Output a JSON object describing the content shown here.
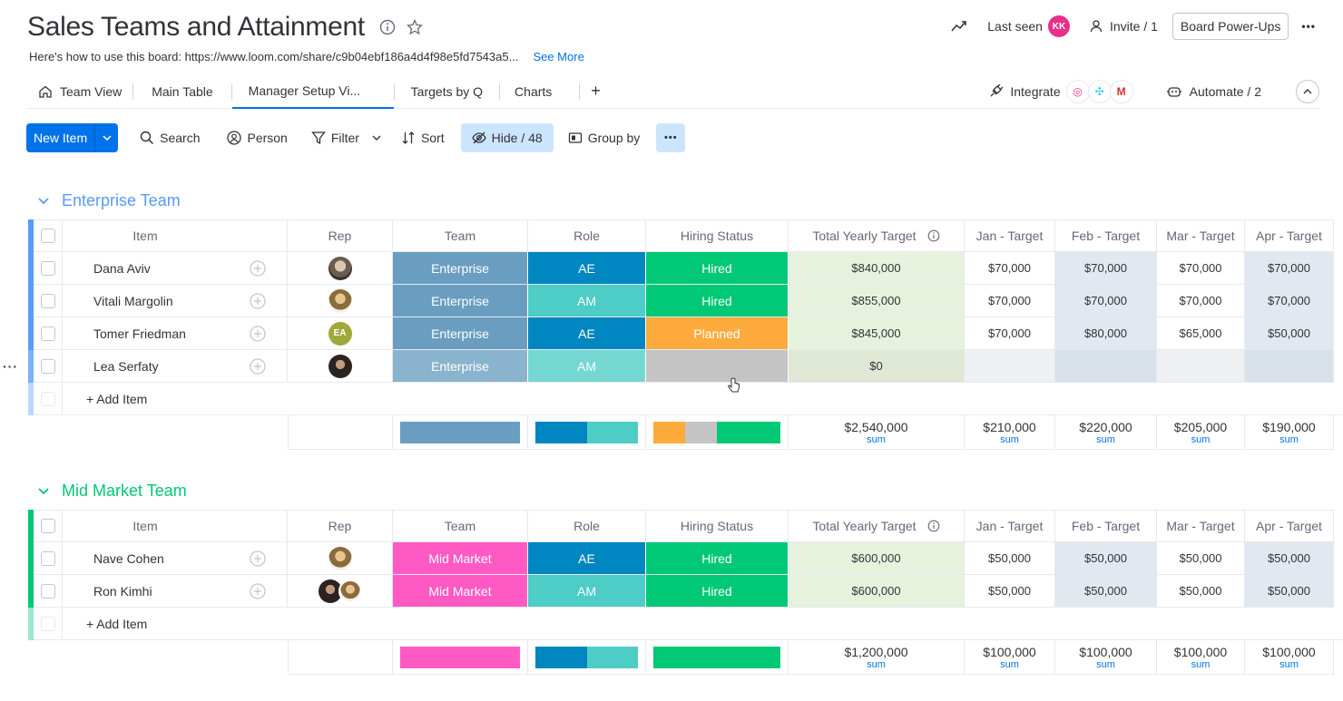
{
  "board": {
    "title": "Sales Teams and Attainment",
    "description": "Here's how to use this board: https://www.loom.com/share/c9b04ebf186a4d4f98e5fd7543a5...",
    "see_more": "See More"
  },
  "header": {
    "last_seen": "Last seen",
    "last_seen_avatar": "KK",
    "invite": "Invite / 1",
    "power_ups": "Board Power-Ups",
    "more": "•••"
  },
  "views": {
    "tabs": [
      "Team View",
      "Main Table",
      "Manager Setup Vi...",
      "Targets by Q",
      "Charts"
    ],
    "add": "+",
    "integrate": "Integrate",
    "automate": "Automate / 2"
  },
  "toolbar": {
    "new_item": "New Item",
    "search": "Search",
    "person": "Person",
    "filter": "Filter",
    "sort": "Sort",
    "hide": "Hide / 48",
    "group_by": "Group by",
    "more": "•••"
  },
  "columns": {
    "item": "Item",
    "rep": "Rep",
    "team": "Team",
    "role": "Role",
    "hiring": "Hiring Status",
    "total": "Total Yearly Target",
    "jan": "Jan - Target",
    "feb": "Feb - Target",
    "mar": "Mar - Target",
    "apr": "Apr - Target"
  },
  "colors": {
    "enterprise_group": "#579bfc",
    "mid_market_group": "#00c875",
    "enterprise_team": "#6a9ec0",
    "mid_market_team": "#ff5ac4",
    "ae": "#0086c0",
    "am": "#4eccc6",
    "hired": "#00c875",
    "planned": "#fdab3d",
    "empty": "#c4c4c4"
  },
  "add_item": "+ Add Item",
  "sum_label": "sum",
  "groups": [
    {
      "title": "Enterprise Team",
      "rows": [
        {
          "item": "Dana Aviv",
          "rep": "photo",
          "team": "Enterprise",
          "role": "AE",
          "hiring": "Hired",
          "total": "$840,000",
          "jan": "$70,000",
          "feb": "$70,000",
          "mar": "$70,000",
          "apr": "$70,000"
        },
        {
          "item": "Vitali Margolin",
          "rep": "photo2",
          "team": "Enterprise",
          "role": "AM",
          "hiring": "Hired",
          "total": "$855,000",
          "jan": "$70,000",
          "feb": "$70,000",
          "mar": "$70,000",
          "apr": "$70,000"
        },
        {
          "item": "Tomer Friedman",
          "rep": "EA",
          "team": "Enterprise",
          "role": "AE",
          "hiring": "Planned",
          "total": "$845,000",
          "jan": "$70,000",
          "feb": "$80,000",
          "mar": "$65,000",
          "apr": "$50,000"
        },
        {
          "item": "Lea Serfaty",
          "rep": "photo3",
          "team": "Enterprise",
          "role": "AM",
          "hiring": "",
          "total": "$0",
          "jan": "",
          "feb": "",
          "mar": "",
          "apr": ""
        }
      ],
      "sums": {
        "total": "$2,540,000",
        "jan": "$210,000",
        "feb": "$220,000",
        "mar": "$205,000",
        "apr": "$190,000"
      }
    },
    {
      "title": "Mid Market Team",
      "rows": [
        {
          "item": "Nave Cohen",
          "rep": "photo2",
          "team": "Mid Market",
          "role": "AE",
          "hiring": "Hired",
          "total": "$600,000",
          "jan": "$50,000",
          "feb": "$50,000",
          "mar": "$50,000",
          "apr": "$50,000"
        },
        {
          "item": "Ron Kimhi",
          "rep": "photo3",
          "team": "Mid Market",
          "role": "AM",
          "hiring": "Hired",
          "total": "$600,000",
          "jan": "$50,000",
          "feb": "$50,000",
          "mar": "$50,000",
          "apr": "$50,000"
        }
      ],
      "sums": {
        "total": "$1,200,000",
        "jan": "$100,000",
        "feb": "$100,000",
        "mar": "$100,000",
        "apr": "$100,000"
      }
    }
  ]
}
